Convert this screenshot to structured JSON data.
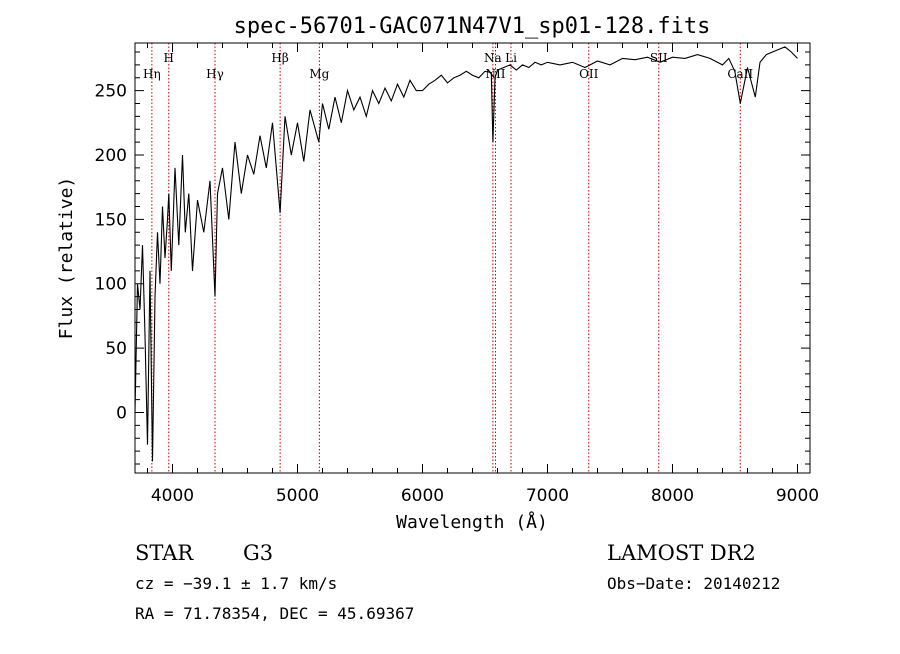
{
  "chart_data": {
    "type": "line",
    "title": "spec-56701-GAC071N47V1_sp01-128.fits",
    "xlabel": "Wavelength (Å)",
    "ylabel": "Flux (relative)",
    "xlim": [
      3700,
      9100
    ],
    "ylim": [
      -47,
      287
    ],
    "xticks": [
      4000,
      5000,
      6000,
      7000,
      8000,
      9000
    ],
    "yticks": [
      0,
      50,
      100,
      150,
      200,
      250
    ],
    "grid": false,
    "series": [
      {
        "x": [
          3700,
          3720,
          3740,
          3760,
          3780,
          3800,
          3820,
          3840,
          3860,
          3880,
          3900,
          3920,
          3940,
          3960,
          3970,
          3990,
          4020,
          4050,
          4080,
          4102,
          4130,
          4160,
          4200,
          4250,
          4300,
          4340,
          4360,
          4400,
          4450,
          4500,
          4550,
          4600,
          4650,
          4700,
          4750,
          4800,
          4861,
          4900,
          4950,
          5000,
          5050,
          5100,
          5170,
          5200,
          5250,
          5300,
          5350,
          5400,
          5450,
          5500,
          5550,
          5600,
          5650,
          5700,
          5750,
          5800,
          5850,
          5900,
          5950,
          6000,
          6050,
          6100,
          6150,
          6200,
          6250,
          6300,
          6350,
          6400,
          6450,
          6500,
          6550,
          6563,
          6580,
          6600,
          6650,
          6700,
          6750,
          6800,
          6850,
          6900,
          6950,
          7000,
          7100,
          7200,
          7300,
          7400,
          7500,
          7600,
          7700,
          7800,
          7900,
          8000,
          8100,
          8200,
          8300,
          8400,
          8450,
          8498,
          8542,
          8600,
          8662,
          8700,
          8750,
          8800,
          8850,
          8900,
          8950,
          9000
        ],
        "y": [
          0,
          100,
          80,
          130,
          60,
          -25,
          110,
          -38,
          90,
          140,
          100,
          160,
          120,
          150,
          170,
          110,
          190,
          130,
          200,
          140,
          170,
          110,
          165,
          140,
          180,
          90,
          170,
          190,
          150,
          210,
          170,
          200,
          185,
          215,
          190,
          225,
          155,
          230,
          200,
          225,
          195,
          235,
          210,
          240,
          220,
          245,
          225,
          250,
          235,
          245,
          230,
          250,
          240,
          252,
          242,
          255,
          245,
          258,
          250,
          250,
          255,
          258,
          262,
          256,
          260,
          262,
          265,
          262,
          260,
          265,
          264,
          210,
          260,
          266,
          268,
          270,
          266,
          270,
          268,
          272,
          270,
          272,
          270,
          272,
          268,
          273,
          270,
          275,
          274,
          276,
          272,
          276,
          275,
          278,
          275,
          270,
          275,
          265,
          240,
          268,
          245,
          272,
          278,
          280,
          282,
          284,
          280,
          275
        ]
      }
    ],
    "annotations": [
      {
        "label": "Hη",
        "x": 3835
      },
      {
        "label": "H",
        "x": 3970
      },
      {
        "label": "Hγ",
        "x": 4340
      },
      {
        "label": "Hβ",
        "x": 4861
      },
      {
        "label": "Mg",
        "x": 5175
      },
      {
        "label": "Na",
        "x": 6563
      },
      {
        "label": "NII",
        "x": 6584
      },
      {
        "label": "Li",
        "x": 6708
      },
      {
        "label": "OII",
        "x": 7330
      },
      {
        "label": "SII",
        "x": 7890
      },
      {
        "label": "CaII",
        "x": 8542
      }
    ]
  },
  "info": {
    "object_type": "STAR",
    "subclass": "G3",
    "survey": "LAMOST DR2",
    "cz": "cz = −39.1 ± 1.7 km/s",
    "obs_date": "Obs−Date: 20140212",
    "coords": "RA =  71.78354, DEC =  45.69367"
  },
  "colors": {
    "spectrum": "#000000",
    "marker_lines": "#cc0000",
    "axes": "#000000"
  }
}
